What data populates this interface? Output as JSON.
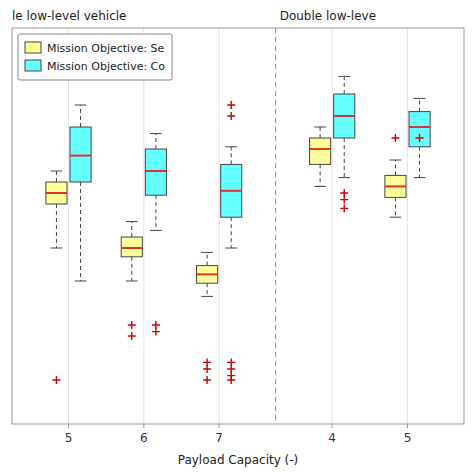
{
  "chart_data": {
    "type": "box",
    "annotations": [
      "le low-level vehicle",
      "Double low-leve"
    ],
    "x_label": "Payload Capacity (-)",
    "categories": [
      "5",
      "6",
      "7",
      "4",
      "5"
    ],
    "series": [
      {
        "name": "Mission Objective: Se",
        "color": "#ffff99",
        "values": [
          {
            "med": 55,
            "q1": 50,
            "q3": 60,
            "whislo": 30,
            "whishi": 65,
            "fliers": [
              -30
            ]
          },
          {
            "med": 30,
            "q1": 26,
            "q3": 35,
            "whislo": 15,
            "whishi": 42,
            "fliers": [
              -5,
              -10
            ]
          },
          {
            "med": 18,
            "q1": 14,
            "q3": 22,
            "whislo": 8,
            "whishi": 28,
            "fliers": [
              -30,
              -25,
              -22
            ]
          },
          {
            "med": 75,
            "q1": 68,
            "q3": 80,
            "whislo": 58,
            "whishi": 85,
            "fliers": []
          },
          {
            "med": 58,
            "q1": 53,
            "q3": 63,
            "whislo": 44,
            "whishi": 70,
            "fliers": [
              80
            ]
          }
        ]
      },
      {
        "name": "Mission Objective: Co",
        "color": "#66ffff",
        "values": [
          {
            "med": 72,
            "q1": 60,
            "q3": 85,
            "whislo": 15,
            "whishi": 95,
            "fliers": []
          },
          {
            "med": 65,
            "q1": 54,
            "q3": 75,
            "whislo": 38,
            "whishi": 82,
            "fliers": [
              -5,
              -8
            ]
          },
          {
            "med": 56,
            "q1": 44,
            "q3": 68,
            "whislo": 30,
            "whishi": 76,
            "fliers": [
              -22,
              -25,
              -28,
              -30,
              90,
              95
            ]
          },
          {
            "med": 90,
            "q1": 80,
            "q3": 100,
            "whislo": 62,
            "whishi": 108,
            "fliers": [
              48,
              52,
              55
            ]
          },
          {
            "med": 85,
            "q1": 76,
            "q3": 92,
            "whislo": 62,
            "whishi": 98,
            "fliers": [
              80
            ]
          }
        ]
      }
    ],
    "ylim": [
      -50,
      130
    ],
    "grid": true,
    "legend": "upper left",
    "tick_labels": "x"
  }
}
